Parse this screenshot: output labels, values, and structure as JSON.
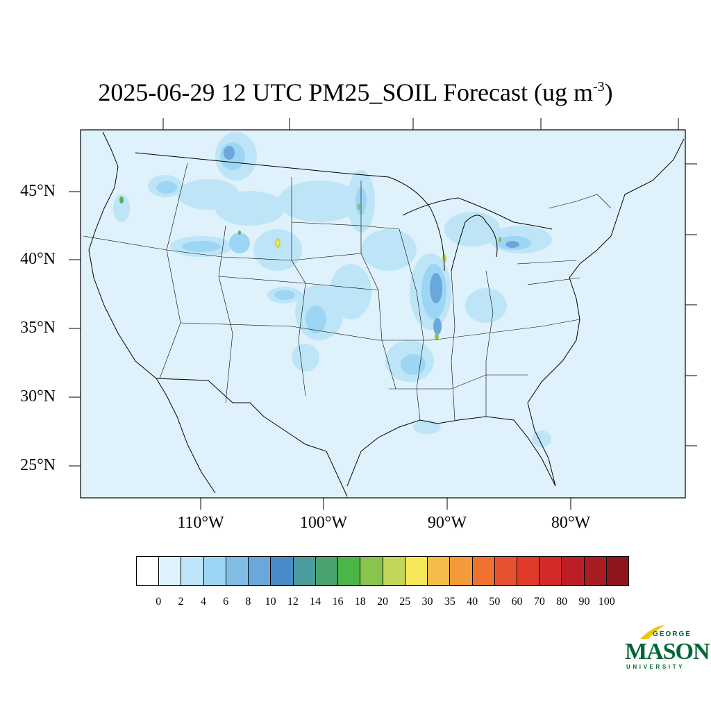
{
  "title": {
    "text": "2025-06-29 12 UTC PM25_SOIL Forecast (ug m",
    "exponent": "-3",
    "close": ")"
  },
  "axes": {
    "lat_labels": [
      "45°N",
      "40°N",
      "35°N",
      "30°N",
      "25°N"
    ],
    "lon_labels": [
      "110°W",
      "100°W",
      "90°W",
      "80°W"
    ]
  },
  "colorbar": {
    "colors": [
      "#ffffff",
      "#dff1fb",
      "#bde5f7",
      "#9dd6f4",
      "#82bde6",
      "#6aa8db",
      "#4a8bc9",
      "#4b9c9d",
      "#49a36f",
      "#4cb547",
      "#87c54d",
      "#c2d659",
      "#f7e55a",
      "#f6bc4b",
      "#f39a3b",
      "#f0712e",
      "#e65130",
      "#e03a2a",
      "#d32a2a",
      "#bb1f25",
      "#a81c22",
      "#8e161b"
    ],
    "tick_labels": [
      "0",
      "2",
      "4",
      "6",
      "8",
      "10",
      "12",
      "14",
      "16",
      "18",
      "20",
      "25",
      "30",
      "35",
      "40",
      "50",
      "60",
      "70",
      "80",
      "90",
      "100"
    ]
  },
  "map": {
    "background_color": "#dff1fb",
    "region": "Contiguous United States",
    "field": "PM25_SOIL"
  },
  "logo": {
    "top_text": "GEORGE",
    "main_text": "MASON",
    "bottom_text": "UNIVERSITY",
    "accent_color": "#f2c500",
    "brand_color": "#006633"
  }
}
